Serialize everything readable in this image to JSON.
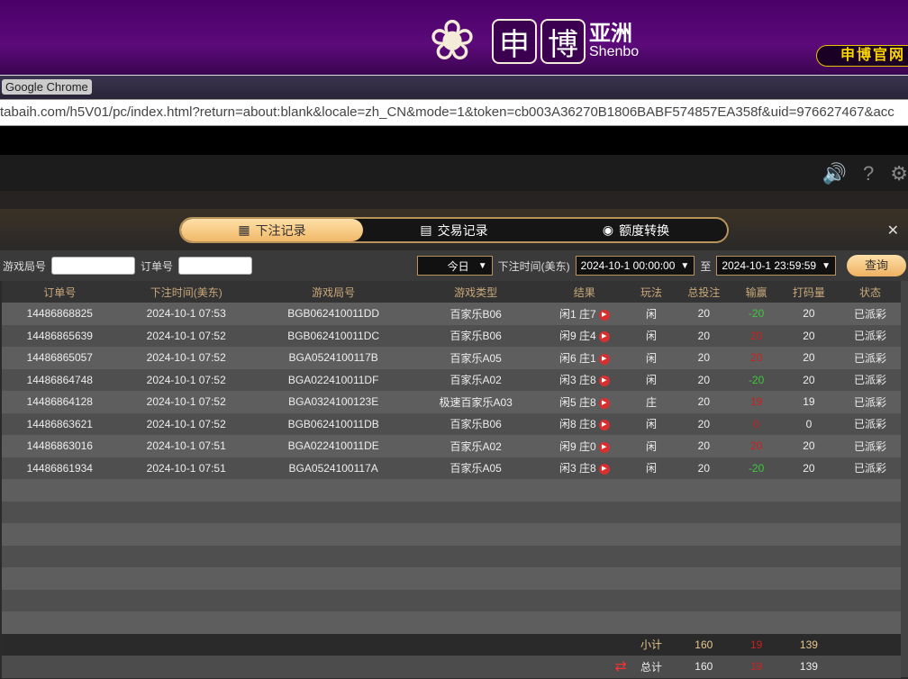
{
  "banner": {
    "logo_chars": [
      "申",
      "博"
    ],
    "logo_cn": "亚洲",
    "logo_en": "Shenbo",
    "official_site": "申博官网"
  },
  "browser": {
    "title": "Google Chrome",
    "url": "tabaih.com/h5V01/pc/index.html?return=about:blank&locale=zh_CN&mode=1&token=cb003A36270B1806BABF574857EA358f&uid=976627467&acc"
  },
  "modal": {
    "tabs": [
      {
        "label": "下注记录",
        "icon": "calendar-icon",
        "active": true
      },
      {
        "label": "交易记录",
        "icon": "document-icon"
      },
      {
        "label": "额度转换",
        "icon": "coins-icon"
      }
    ],
    "filters": {
      "game_round_label": "游戏局号",
      "order_label": "订单号",
      "period": "今日",
      "time_label": "下注时间(美东)",
      "start": "2024-10-1 00:00:00",
      "to_label": "至",
      "end": "2024-10-1 23:59:59",
      "query": "查询"
    },
    "columns": [
      "订单号",
      "下注时间(美东)",
      "游戏局号",
      "游戏类型",
      "结果",
      "玩法",
      "总投注",
      "输赢",
      "打码量",
      "状态"
    ],
    "rows": [
      [
        "14486868825",
        "2024-10-1 07:53",
        "BGB062410011DD",
        "百家乐B06",
        "闲1 庄7",
        "闲",
        "20",
        "-20",
        "20",
        "已派彩"
      ],
      [
        "14486865639",
        "2024-10-1 07:52",
        "BGB062410011DC",
        "百家乐B06",
        "闲9 庄4",
        "闲",
        "20",
        "20",
        "20",
        "已派彩"
      ],
      [
        "14486865057",
        "2024-10-1 07:52",
        "BGA0524100117B",
        "百家乐A05",
        "闲6 庄1",
        "闲",
        "20",
        "20",
        "20",
        "已派彩"
      ],
      [
        "14486864748",
        "2024-10-1 07:52",
        "BGA022410011DF",
        "百家乐A02",
        "闲3 庄8",
        "闲",
        "20",
        "-20",
        "20",
        "已派彩"
      ],
      [
        "14486864128",
        "2024-10-1 07:52",
        "BGA0324100123E",
        "极速百家乐A03",
        "闲5 庄8",
        "庄",
        "20",
        "19",
        "19",
        "已派彩"
      ],
      [
        "14486863621",
        "2024-10-1 07:52",
        "BGB062410011DB",
        "百家乐B06",
        "闲8 庄8",
        "闲",
        "20",
        "0",
        "0",
        "已派彩"
      ],
      [
        "14486863016",
        "2024-10-1 07:51",
        "BGA022410011DE",
        "百家乐A02",
        "闲9 庄0",
        "闲",
        "20",
        "20",
        "20",
        "已派彩"
      ],
      [
        "14486861934",
        "2024-10-1 07:51",
        "BGA0524100117A",
        "百家乐A05",
        "闲3 庄8",
        "闲",
        "20",
        "-20",
        "20",
        "已派彩"
      ]
    ],
    "subtotal": {
      "label": "小计",
      "bet": "160",
      "winloss": "19",
      "turnover": "139"
    },
    "total": {
      "label": "总计",
      "bet": "160",
      "winloss": "19",
      "turnover": "139"
    }
  },
  "colors": {
    "win": "#3ec83e",
    "loss": "#cc2020",
    "accent": "#f0b868"
  }
}
